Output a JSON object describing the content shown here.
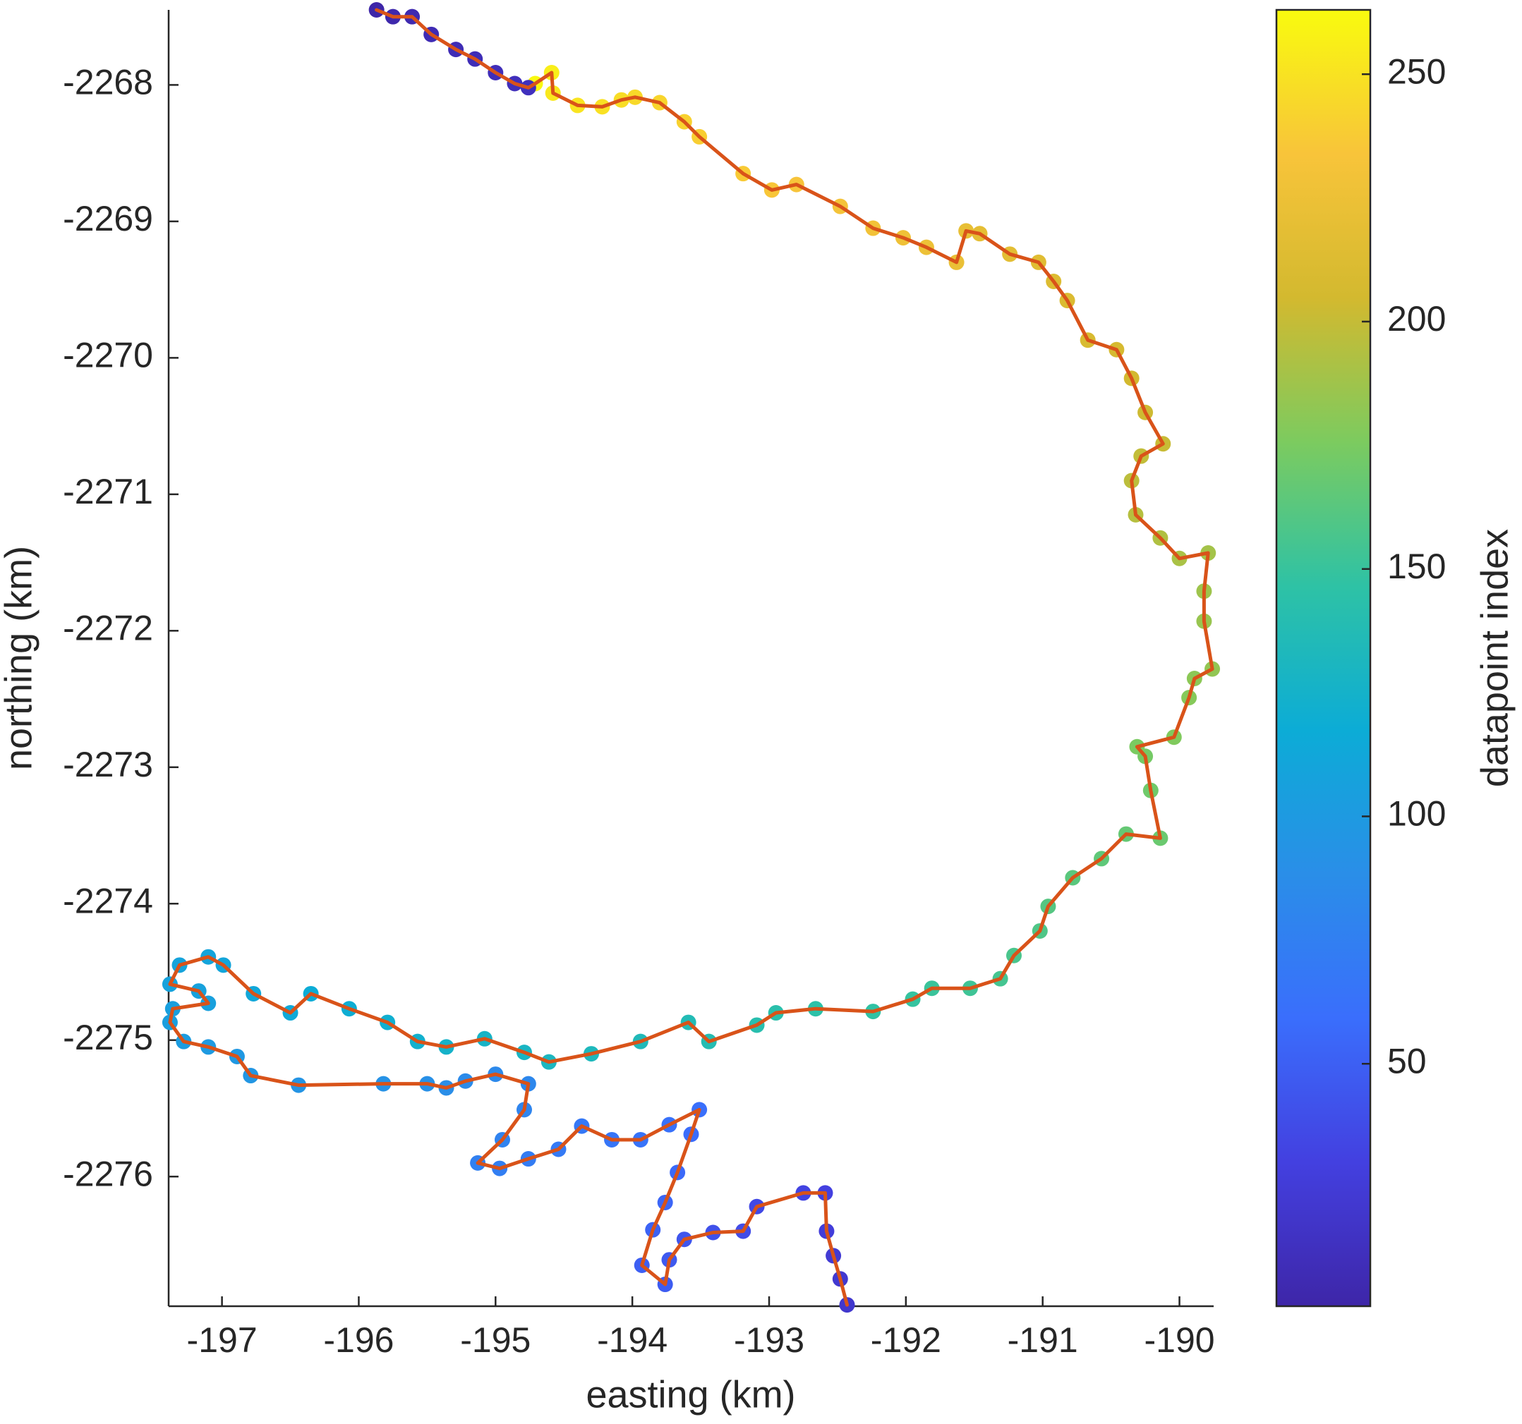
{
  "chart_data": {
    "type": "scatter",
    "xlabel": "easting (km)",
    "ylabel": "northing (km)",
    "xlim": [
      -197.39,
      -189.75
    ],
    "ylim": [
      -2276.95,
      -2267.45
    ],
    "xticks": [
      -197,
      -196,
      -195,
      -194,
      -193,
      -192,
      -191,
      -190
    ],
    "yticks": [
      -2276,
      -2275,
      -2274,
      -2273,
      -2272,
      -2271,
      -2270,
      -2269,
      -2268
    ],
    "line_color": "#d95319",
    "colormap": [
      "#3e26a8",
      "#4340e0",
      "#3a6efc",
      "#2a8ee8",
      "#0cacd6",
      "#2ec2a5",
      "#7ccb5f",
      "#d3b92f",
      "#f8c43a",
      "#f9fb0e"
    ],
    "colorbar": {
      "label": "datapoint index",
      "clim": [
        1,
        263
      ],
      "ticks": [
        50,
        100,
        150,
        200,
        250
      ]
    },
    "x": [
      -192.43,
      -192.48,
      -192.53,
      -192.58,
      -192.59,
      -192.75,
      -193.09,
      -193.19,
      -193.41,
      -193.62,
      -193.73,
      -193.76,
      -193.93,
      -193.85,
      -193.76,
      -193.67,
      -193.57,
      -193.51,
      -193.73,
      -193.94,
      -194.15,
      -194.37,
      -194.54,
      -194.76,
      -194.97,
      -195.13,
      -194.95,
      -194.79,
      -194.76,
      -195.0,
      -195.22,
      -195.36,
      -195.5,
      -195.82,
      -196.44,
      -196.79,
      -196.89,
      -197.1,
      -197.28,
      -197.38,
      -197.36,
      -197.1,
      -197.17,
      -197.38,
      -197.31,
      -197.1,
      -196.99,
      -196.77,
      -196.5,
      -196.35,
      -196.07,
      -195.79,
      -195.57,
      -195.36,
      -195.08,
      -194.79,
      -194.61,
      -194.3,
      -193.94,
      -193.59,
      -193.44,
      -193.09,
      -192.95,
      -192.66,
      -192.24,
      -191.95,
      -191.81,
      -191.53,
      -191.31,
      -191.21,
      -191.02,
      -190.96,
      -190.78,
      -190.57,
      -190.39,
      -190.14,
      -190.21,
      -190.25,
      -190.31,
      -190.04,
      -189.93,
      -189.89,
      -189.76,
      -189.82,
      -189.82,
      -189.79,
      -190.0,
      -190.14,
      -190.32,
      -190.35,
      -190.28,
      -190.12,
      -190.25,
      -190.35,
      -190.46,
      -190.67,
      -190.82,
      -190.92,
      -191.03,
      -191.24,
      -191.46,
      -191.56,
      -191.63,
      -191.85,
      -192.02,
      -192.24,
      -192.48,
      -192.8,
      -192.98,
      -193.19,
      -193.51,
      -193.62,
      -193.8,
      -193.98,
      -194.08,
      -194.22,
      -194.4,
      -194.58,
      -194.59,
      -194.71,
      -194.76,
      -194.86,
      -195.0,
      -195.15,
      -195.29,
      -195.47,
      -195.61,
      -195.75,
      -195.87
    ],
    "y": [
      -2276.94,
      -2276.75,
      -2276.58,
      -2276.4,
      -2276.12,
      -2276.12,
      -2276.22,
      -2276.4,
      -2276.41,
      -2276.46,
      -2276.61,
      -2276.79,
      -2276.65,
      -2276.39,
      -2276.19,
      -2275.97,
      -2275.69,
      -2275.51,
      -2275.62,
      -2275.73,
      -2275.73,
      -2275.63,
      -2275.8,
      -2275.87,
      -2275.94,
      -2275.9,
      -2275.73,
      -2275.51,
      -2275.32,
      -2275.25,
      -2275.3,
      -2275.35,
      -2275.32,
      -2275.32,
      -2275.33,
      -2275.26,
      -2275.12,
      -2275.05,
      -2275.01,
      -2274.87,
      -2274.77,
      -2274.73,
      -2274.64,
      -2274.59,
      -2274.45,
      -2274.39,
      -2274.45,
      -2274.66,
      -2274.8,
      -2274.66,
      -2274.77,
      -2274.87,
      -2275.01,
      -2275.05,
      -2274.99,
      -2275.09,
      -2275.16,
      -2275.1,
      -2275.01,
      -2274.87,
      -2275.01,
      -2274.89,
      -2274.8,
      -2274.77,
      -2274.79,
      -2274.7,
      -2274.62,
      -2274.62,
      -2274.55,
      -2274.38,
      -2274.2,
      -2274.02,
      -2273.81,
      -2273.67,
      -2273.49,
      -2273.52,
      -2273.17,
      -2272.92,
      -2272.85,
      -2272.78,
      -2272.49,
      -2272.35,
      -2272.28,
      -2271.93,
      -2271.71,
      -2271.43,
      -2271.47,
      -2271.32,
      -2271.15,
      -2270.9,
      -2270.72,
      -2270.63,
      -2270.4,
      -2270.15,
      -2269.94,
      -2269.87,
      -2269.58,
      -2269.44,
      -2269.3,
      -2269.24,
      -2269.09,
      -2269.07,
      -2269.3,
      -2269.19,
      -2269.12,
      -2269.05,
      -2268.89,
      -2268.73,
      -2268.77,
      -2268.65,
      -2268.38,
      -2268.27,
      -2268.13,
      -2268.09,
      -2268.11,
      -2268.16,
      -2268.15,
      -2268.06,
      -2267.91,
      -2267.99,
      -2268.02,
      -2267.99,
      -2267.91,
      -2267.81,
      -2267.74,
      -2267.63,
      -2267.5,
      -2267.5,
      -2267.45
    ],
    "c": [
      20,
      22,
      24,
      27,
      30,
      32,
      35,
      38,
      41,
      44,
      46,
      48,
      50,
      52,
      54,
      56,
      58,
      60,
      62,
      64,
      66,
      68,
      70,
      72,
      74,
      76,
      78,
      80,
      82,
      84,
      86,
      88,
      90,
      92,
      94,
      96,
      98,
      100,
      102,
      104,
      105,
      106,
      107,
      108,
      109,
      110,
      111,
      113,
      115,
      117,
      119,
      121,
      123,
      125,
      127,
      129,
      131,
      133,
      135,
      137,
      139,
      141,
      143,
      145,
      147,
      149,
      151,
      153,
      155,
      157,
      159,
      161,
      163,
      165,
      167,
      169,
      171,
      173,
      175,
      177,
      179,
      181,
      183,
      185,
      187,
      189,
      191,
      193,
      195,
      197,
      199,
      201,
      203,
      205,
      207,
      209,
      211,
      213,
      215,
      217,
      219,
      221,
      223,
      225,
      227,
      229,
      231,
      233,
      235,
      237,
      239,
      241,
      243,
      245,
      247,
      249,
      251,
      253,
      256,
      262,
      12,
      11,
      10,
      9,
      8,
      7,
      5,
      3,
      1
    ]
  }
}
